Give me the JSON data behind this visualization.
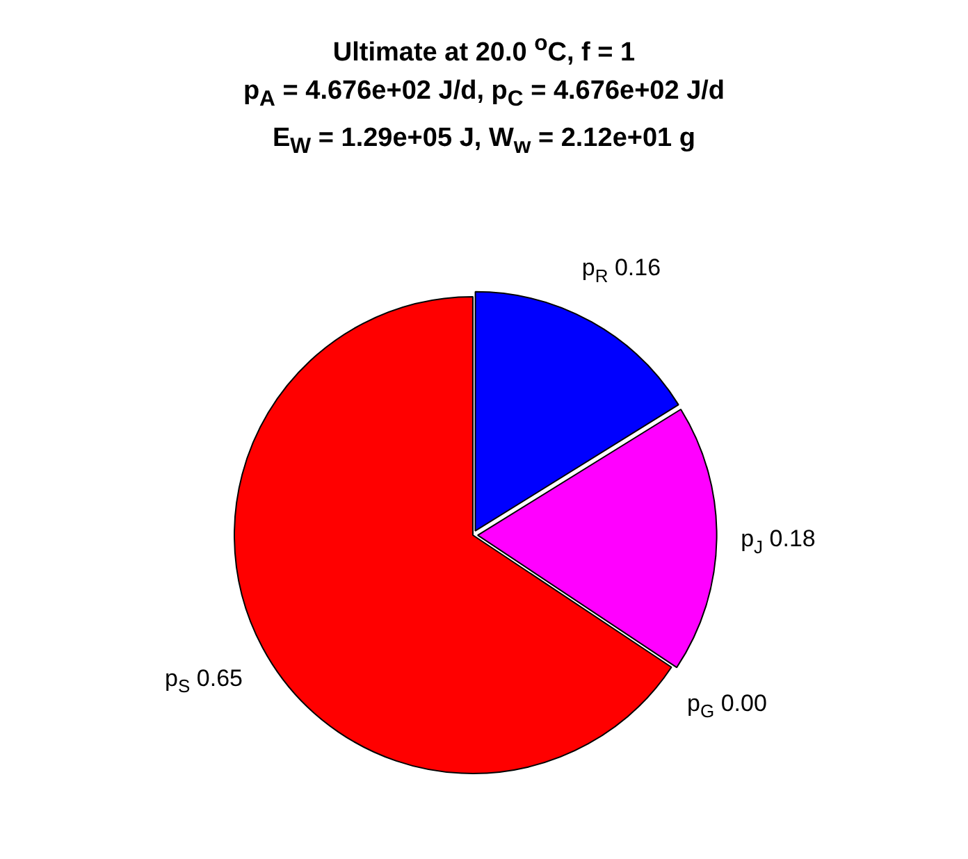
{
  "chart_data": {
    "type": "pie",
    "title": "Ultimate at 20.0 $^{o}$C, f = 1\np$_{A}$ = 4.676e+02 J/d, p$_{C}$ = 4.676e+02 J/d\nE$_{W}$ = 1.29e+05 J, W$_{w}$ = 2.12e+01 g",
    "categories": [
      "p$_{R}$",
      "p$_{J}$",
      "p$_{G}$",
      "p$_{S}$"
    ],
    "values": [
      0.16,
      0.18,
      0.0,
      0.65
    ],
    "value_labels": [
      "0.16",
      "0.18",
      "0.00",
      "0.65"
    ],
    "colors": [
      "#0000ff",
      "#ff00ff",
      "#00ffff",
      "#ff0000"
    ],
    "legend": false
  }
}
